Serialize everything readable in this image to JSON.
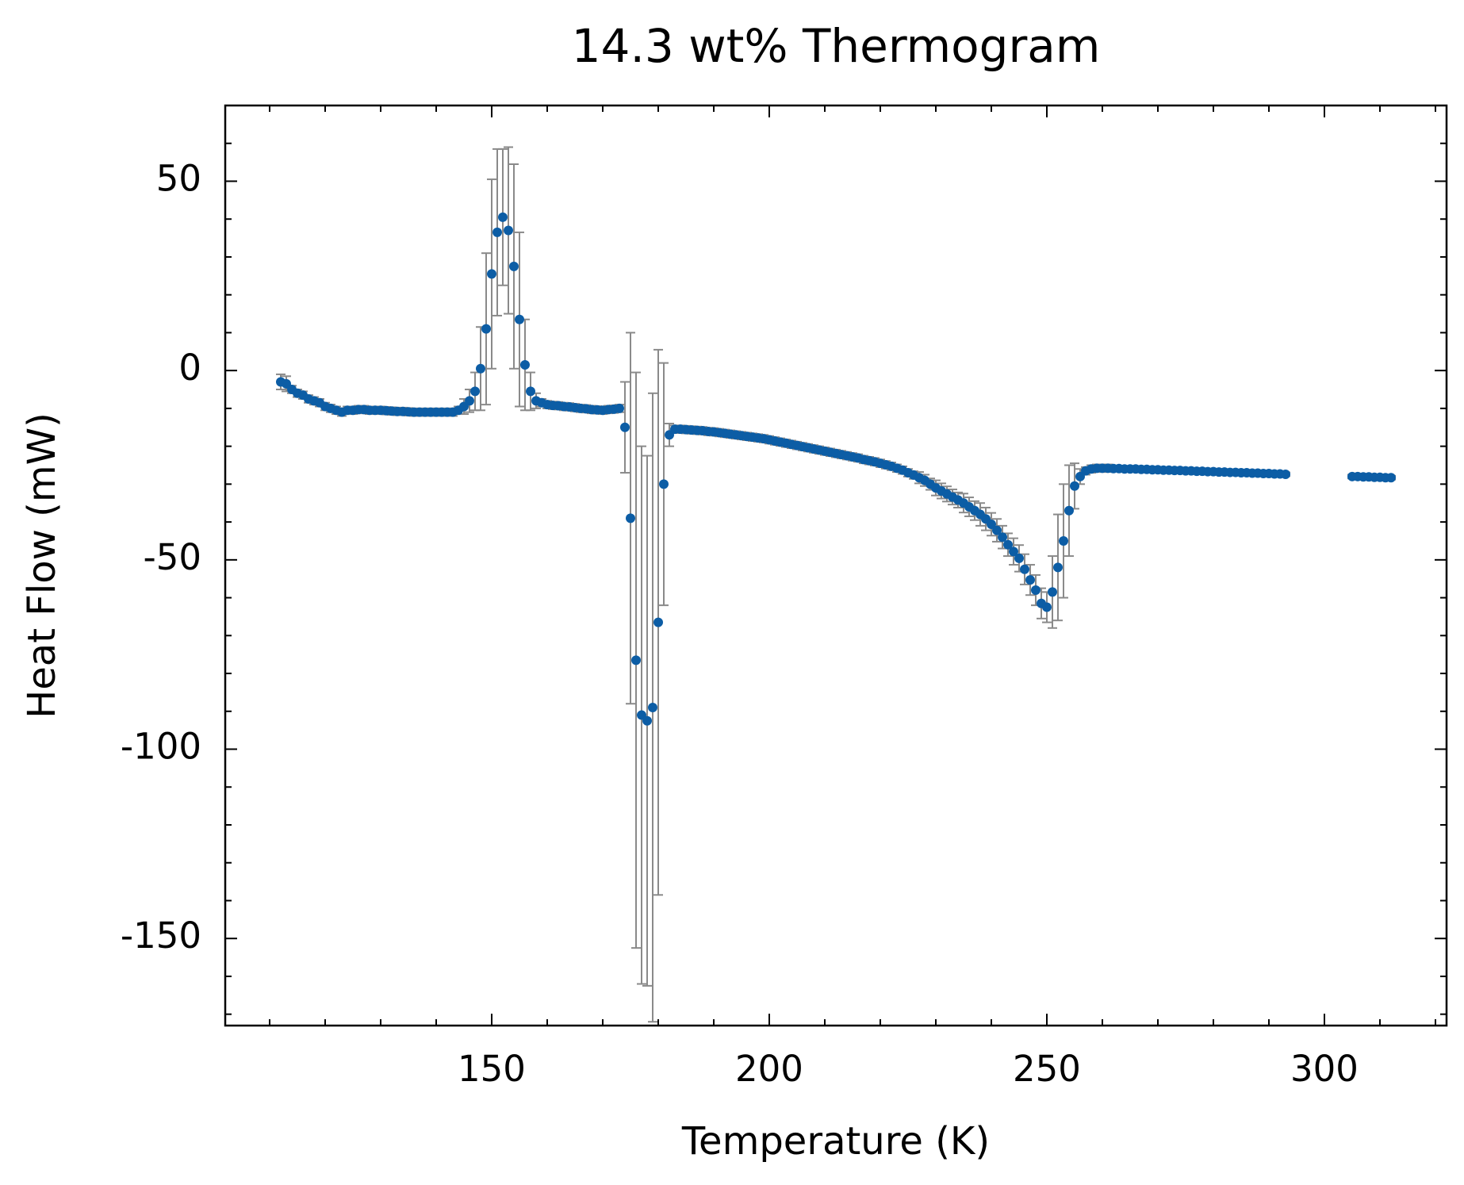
{
  "chart_data": {
    "type": "scatter",
    "title": "14.3 wt% Thermogram",
    "xlabel": "Temperature (K)",
    "ylabel": "Heat Flow (mW)",
    "color": "#0c5da5",
    "error_color": "#8a8a8a",
    "xlim": [
      102,
      322
    ],
    "ylim": [
      -173,
      70
    ],
    "xticks": [
      150,
      200,
      250,
      300
    ],
    "yticks": [
      {
        "value": -150,
        "label": "-150"
      },
      {
        "value": -100,
        "label": "-100"
      },
      {
        "value": -50,
        "label": "-50"
      },
      0,
      50
    ],
    "xminorticks": [
      110,
      120,
      130,
      140,
      160,
      170,
      180,
      190,
      210,
      220,
      230,
      240,
      260,
      270,
      280,
      290,
      310,
      320
    ],
    "yminorticks": [
      -170,
      -160,
      -140,
      -130,
      -120,
      -110,
      -90,
      -80,
      -70,
      -60,
      -40,
      -30,
      -20,
      -10,
      10,
      20,
      30,
      40,
      60,
      70
    ],
    "x": [
      112,
      113,
      114,
      115,
      116,
      117,
      118,
      119,
      120,
      121,
      122,
      123,
      124,
      125,
      126,
      127,
      128,
      129,
      130,
      131,
      132,
      133,
      134,
      135,
      136,
      137,
      138,
      139,
      140,
      141,
      142,
      143,
      144,
      145,
      146,
      147,
      148,
      149,
      150,
      151,
      152,
      153,
      154,
      155,
      156,
      157,
      158,
      159,
      160,
      161,
      162,
      163,
      164,
      165,
      166,
      167,
      168,
      169,
      170,
      171,
      172,
      173,
      174,
      175,
      176,
      177,
      178,
      179,
      180,
      181,
      182,
      183,
      184,
      185,
      186,
      187,
      188,
      189,
      190,
      191,
      192,
      193,
      194,
      195,
      196,
      197,
      198,
      199,
      200,
      201,
      202,
      203,
      204,
      205,
      206,
      207,
      208,
      209,
      210,
      211,
      212,
      213,
      214,
      215,
      216,
      217,
      218,
      219,
      220,
      221,
      222,
      223,
      224,
      225,
      226,
      227,
      228,
      229,
      230,
      231,
      232,
      233,
      234,
      235,
      236,
      237,
      238,
      239,
      240,
      241,
      242,
      243,
      244,
      245,
      246,
      247,
      248,
      249,
      250,
      251,
      252,
      253,
      254,
      255,
      256,
      257,
      258,
      259,
      260,
      261,
      262,
      263,
      264,
      265,
      266,
      267,
      268,
      269,
      270,
      271,
      272,
      273,
      274,
      275,
      276,
      277,
      278,
      279,
      280,
      281,
      282,
      283,
      284,
      285,
      286,
      287,
      288,
      289,
      290,
      291,
      292,
      293,
      305,
      306,
      307,
      308,
      309,
      310,
      311,
      312
    ],
    "values": [
      -3,
      -3.5,
      -5,
      -6,
      -6.5,
      -7.5,
      -8,
      -8.5,
      -9.5,
      -10,
      -10.5,
      -11,
      -10.5,
      -10.5,
      -10.3,
      -10.3,
      -10.5,
      -10.5,
      -10.5,
      -10.6,
      -10.7,
      -10.8,
      -10.8,
      -10.9,
      -11,
      -11,
      -11,
      -11,
      -11,
      -11,
      -11,
      -11,
      -10.5,
      -9.5,
      -8,
      -5.5,
      0.5,
      11,
      25.5,
      36.5,
      40.5,
      37,
      27.5,
      13.5,
      1.5,
      -5.5,
      -8,
      -8.5,
      -9,
      -9.2,
      -9.3,
      -9.5,
      -9.6,
      -9.8,
      -10,
      -10.1,
      -10.3,
      -10.4,
      -10.5,
      -10.3,
      -10.2,
      -10,
      -15,
      -39,
      -76.5,
      -91,
      -92.5,
      -89,
      -66.5,
      -30,
      -17,
      -15.5,
      -15.5,
      -15.6,
      -15.7,
      -15.8,
      -15.9,
      -16.1,
      -16.2,
      -16.4,
      -16.6,
      -16.8,
      -17,
      -17.2,
      -17.4,
      -17.6,
      -17.8,
      -18,
      -18.3,
      -18.6,
      -18.9,
      -19.2,
      -19.5,
      -19.8,
      -20.1,
      -20.4,
      -20.7,
      -21,
      -21.3,
      -21.6,
      -21.9,
      -22.2,
      -22.5,
      -22.8,
      -23.1,
      -23.5,
      -23.8,
      -24.1,
      -24.5,
      -24.9,
      -25.3,
      -25.8,
      -26.3,
      -27,
      -27.6,
      -28.3,
      -29,
      -30,
      -31,
      -31.8,
      -32.6,
      -33.4,
      -34.2,
      -35,
      -36,
      -37,
      -38,
      -39.2,
      -40.6,
      -42.2,
      -44,
      -46,
      -47.8,
      -49.6,
      -52.5,
      -55.3,
      -58,
      -61.5,
      -62.5,
      -58.5,
      -52,
      -45,
      -37,
      -30.5,
      -28,
      -26.5,
      -26,
      -25.8,
      -25.8,
      -25.8,
      -25.9,
      -25.9,
      -26,
      -26,
      -26,
      -26.1,
      -26.1,
      -26.2,
      -26.2,
      -26.3,
      -26.3,
      -26.4,
      -26.4,
      -26.5,
      -26.5,
      -26.6,
      -26.6,
      -26.7,
      -26.7,
      -26.8,
      -26.8,
      -26.9,
      -26.9,
      -27,
      -27,
      -27.1,
      -27.1,
      -27.2,
      -27.2,
      -27.3,
      -27.3,
      -27.4,
      -28,
      -28,
      -28.1,
      -28.1,
      -28.2,
      -28.2,
      -28.3,
      -28.3
    ],
    "errors": [
      2,
      2,
      1,
      1,
      1,
      1,
      1,
      1,
      1,
      1,
      1,
      1,
      1,
      1,
      1,
      1,
      1,
      1,
      1,
      1,
      1,
      1,
      1,
      1,
      1,
      1,
      1,
      1,
      1,
      1,
      1,
      1,
      1,
      2,
      3,
      5,
      11,
      20,
      25,
      22,
      18,
      22,
      27,
      23,
      12,
      5,
      2,
      1,
      1,
      1,
      1,
      1,
      1,
      1,
      1,
      1,
      1,
      1,
      1,
      1,
      1,
      1,
      12,
      49,
      76,
      71,
      70,
      83,
      72,
      32,
      3,
      1,
      1,
      1,
      1,
      1,
      1,
      1,
      1,
      1,
      1,
      1,
      1,
      1,
      1,
      1,
      1,
      1,
      1,
      1,
      1,
      1,
      1,
      1,
      1,
      1,
      1,
      1,
      1,
      1,
      1,
      1,
      1,
      1,
      1,
      1,
      1,
      1,
      1,
      1,
      1,
      1,
      1,
      1,
      1,
      1.5,
      1.5,
      1.5,
      2,
      2,
      2,
      2,
      2,
      2.5,
      2.5,
      2.5,
      3,
      3,
      3,
      3,
      3,
      3,
      3.5,
      3.5,
      4,
      4,
      4,
      4,
      4,
      9.5,
      14,
      15,
      12,
      6,
      2,
      1,
      1,
      1,
      1,
      1,
      0.5,
      0.5,
      0.5,
      0.5,
      0.5,
      0.5,
      0.5,
      0.5,
      0.5,
      0.5,
      0.5,
      0.5,
      0.5,
      0.5,
      0.5,
      0.5,
      0.5,
      0.5,
      0.5,
      0.5,
      0.5,
      0.5,
      0.5,
      0.5,
      0.5,
      0.5,
      0.5,
      0.5,
      0.5,
      0.5,
      0.5,
      0.5,
      0.5,
      0.5,
      0.5,
      0.5,
      0.5,
      0.5,
      0.5,
      0.5
    ]
  }
}
